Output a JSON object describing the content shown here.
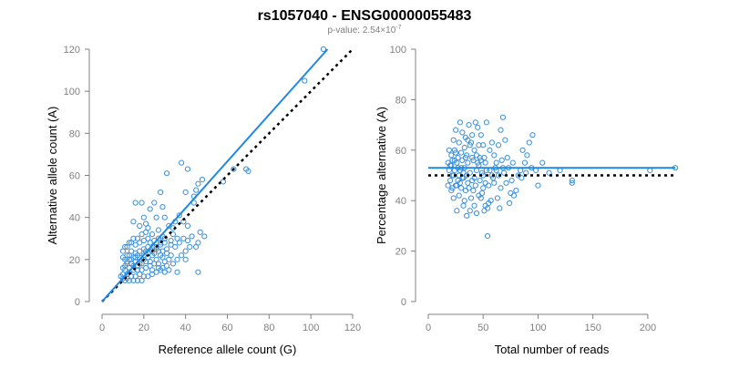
{
  "title": "rs1057040 - ENSG00000055483",
  "subtitle": {
    "prefix": "p-value: 2.54×10",
    "exponent": "-7"
  },
  "colors": {
    "points": "#3a8fd9",
    "fit_line": "#1f88e5",
    "reference_line": "#000000",
    "axis": "#808080"
  },
  "chart_data": [
    {
      "type": "scatter",
      "xlabel": "Reference allele count (G)",
      "ylabel": "Alternative allele count (A)",
      "xlim": [
        0,
        120
      ],
      "ylim": [
        0,
        120
      ],
      "xticks": [
        0,
        20,
        40,
        60,
        80,
        100,
        120
      ],
      "yticks": [
        0,
        20,
        40,
        60,
        80,
        100,
        120
      ],
      "fit_line": {
        "x": [
          0,
          108
        ],
        "y": [
          0,
          120
        ]
      },
      "reference_line": {
        "x": [
          0,
          120
        ],
        "y": [
          0,
          120
        ]
      },
      "points": [
        [
          106,
          120
        ],
        [
          97,
          105
        ],
        [
          69,
          63
        ],
        [
          70,
          62
        ],
        [
          63,
          63
        ],
        [
          58,
          57
        ],
        [
          46,
          56
        ],
        [
          48,
          58
        ],
        [
          38,
          66
        ],
        [
          41,
          63
        ],
        [
          40,
          52
        ],
        [
          44,
          50
        ],
        [
          45,
          53
        ],
        [
          44,
          47
        ],
        [
          31,
          61
        ],
        [
          28,
          52
        ],
        [
          29,
          45
        ],
        [
          25,
          47
        ],
        [
          23,
          44
        ],
        [
          19,
          47
        ],
        [
          16,
          47
        ],
        [
          30,
          40
        ],
        [
          26,
          40
        ],
        [
          20,
          40
        ],
        [
          21,
          37
        ],
        [
          15,
          38
        ],
        [
          18,
          36
        ],
        [
          22,
          35
        ],
        [
          24,
          32
        ],
        [
          27,
          34
        ],
        [
          32,
          36
        ],
        [
          35,
          38
        ],
        [
          34,
          35
        ],
        [
          37,
          41
        ],
        [
          39,
          38
        ],
        [
          41,
          36
        ],
        [
          36,
          30
        ],
        [
          33,
          29
        ],
        [
          30,
          28
        ],
        [
          28,
          27
        ],
        [
          26,
          25
        ],
        [
          25,
          26
        ],
        [
          22,
          26
        ],
        [
          21,
          24
        ],
        [
          20,
          25
        ],
        [
          18,
          24
        ],
        [
          17,
          22
        ],
        [
          16,
          23
        ],
        [
          15,
          21
        ],
        [
          14,
          24
        ],
        [
          13,
          22
        ],
        [
          12,
          22
        ],
        [
          11,
          20
        ],
        [
          10,
          21
        ],
        [
          12,
          18
        ],
        [
          14,
          18
        ],
        [
          16,
          19
        ],
        [
          18,
          18
        ],
        [
          20,
          20
        ],
        [
          22,
          21
        ],
        [
          24,
          22
        ],
        [
          26,
          20
        ],
        [
          28,
          22
        ],
        [
          30,
          19
        ],
        [
          32,
          20
        ],
        [
          33,
          22
        ],
        [
          29,
          24
        ],
        [
          31,
          25
        ],
        [
          27,
          18
        ],
        [
          23,
          17
        ],
        [
          21,
          16
        ],
        [
          19,
          15
        ],
        [
          17,
          15
        ],
        [
          15,
          15
        ],
        [
          13,
          14
        ],
        [
          11,
          15
        ],
        [
          10,
          13
        ],
        [
          12,
          13
        ],
        [
          14,
          12
        ],
        [
          16,
          12
        ],
        [
          18,
          13
        ],
        [
          20,
          12
        ],
        [
          22,
          12
        ],
        [
          24,
          13
        ],
        [
          12,
          11
        ],
        [
          13,
          10
        ],
        [
          15,
          10
        ],
        [
          17,
          10
        ],
        [
          19,
          10
        ],
        [
          11,
          10
        ],
        [
          10,
          11
        ],
        [
          9,
          12
        ],
        [
          10,
          16
        ],
        [
          11,
          17
        ],
        [
          13,
          16
        ],
        [
          15,
          17
        ],
        [
          17,
          17
        ],
        [
          19,
          18
        ],
        [
          21,
          19
        ],
        [
          23,
          19
        ],
        [
          25,
          18
        ],
        [
          27,
          16
        ],
        [
          29,
          16
        ],
        [
          31,
          17
        ],
        [
          34,
          18
        ],
        [
          36,
          20
        ],
        [
          38,
          22
        ],
        [
          40,
          24
        ],
        [
          42,
          26
        ],
        [
          35,
          26
        ],
        [
          33,
          27
        ],
        [
          37,
          28
        ],
        [
          43,
          31
        ],
        [
          47,
          33
        ],
        [
          49,
          31
        ],
        [
          46,
          28
        ],
        [
          39,
          30
        ],
        [
          41,
          29
        ],
        [
          45,
          26
        ],
        [
          40,
          20
        ],
        [
          36,
          14
        ],
        [
          46,
          14
        ],
        [
          25,
          29
        ],
        [
          27,
          30
        ],
        [
          29,
          31
        ],
        [
          22,
          30
        ],
        [
          20,
          29
        ],
        [
          18,
          28
        ],
        [
          16,
          27
        ],
        [
          14,
          28
        ],
        [
          12,
          26
        ],
        [
          10,
          24
        ],
        [
          11,
          26
        ],
        [
          13,
          28
        ],
        [
          15,
          30
        ],
        [
          17,
          30
        ],
        [
          19,
          32
        ],
        [
          21,
          33
        ],
        [
          23,
          28
        ],
        [
          25,
          23
        ],
        [
          27,
          24
        ],
        [
          29,
          21
        ],
        [
          31,
          23
        ],
        [
          24,
          15
        ],
        [
          26,
          14
        ],
        [
          28,
          15
        ],
        [
          30,
          14
        ],
        [
          32,
          15
        ],
        [
          13,
          20
        ],
        [
          12,
          19
        ],
        [
          14,
          20
        ],
        [
          16,
          21
        ],
        [
          18,
          21
        ],
        [
          20,
          22
        ],
        [
          22,
          23
        ],
        [
          24,
          24
        ],
        [
          26,
          26
        ],
        [
          28,
          28
        ],
        [
          30,
          30
        ],
        [
          34,
          32
        ]
      ]
    },
    {
      "type": "scatter",
      "xlabel": "Total number of reads",
      "ylabel": "Percentage alternative (A)",
      "xlim": [
        0,
        225
      ],
      "ylim": [
        0,
        100
      ],
      "xticks": [
        0,
        50,
        100,
        150,
        200
      ],
      "yticks": [
        0,
        20,
        40,
        60,
        80,
        100
      ],
      "fit_line": {
        "x": [
          0,
          225
        ],
        "y": [
          53,
          53
        ]
      },
      "reference_line": {
        "x": [
          0,
          225
        ],
        "y": [
          50,
          50
        ]
      },
      "points": [
        [
          225,
          53
        ],
        [
          202,
          52
        ],
        [
          131,
          48
        ],
        [
          131,
          47
        ],
        [
          120,
          52
        ],
        [
          110,
          51
        ],
        [
          104,
          55
        ],
        [
          100,
          46
        ],
        [
          98,
          52
        ],
        [
          95,
          66
        ],
        [
          92,
          63
        ],
        [
          90,
          58
        ],
        [
          88,
          55
        ],
        [
          86,
          60
        ],
        [
          84,
          52
        ],
        [
          80,
          44
        ],
        [
          78,
          42
        ],
        [
          76,
          48
        ],
        [
          74,
          39
        ],
        [
          72,
          57
        ],
        [
          70,
          64
        ],
        [
          68,
          73
        ],
        [
          66,
          68
        ],
        [
          64,
          62
        ],
        [
          62,
          55
        ],
        [
          60,
          58
        ],
        [
          58,
          50
        ],
        [
          56,
          60
        ],
        [
          55,
          39
        ],
        [
          54,
          26
        ],
        [
          54,
          37
        ],
        [
          53,
          71
        ],
        [
          52,
          38
        ],
        [
          52,
          47
        ],
        [
          51,
          57
        ],
        [
          50,
          62
        ],
        [
          50,
          45
        ],
        [
          49,
          51
        ],
        [
          48,
          66
        ],
        [
          47,
          57
        ],
        [
          46,
          54
        ],
        [
          46,
          42
        ],
        [
          45,
          69
        ],
        [
          44,
          35
        ],
        [
          44,
          52
        ],
        [
          43,
          71
        ],
        [
          42,
          60
        ],
        [
          42,
          49
        ],
        [
          41,
          44
        ],
        [
          40,
          66
        ],
        [
          40,
          57
        ],
        [
          39,
          41
        ],
        [
          38,
          62
        ],
        [
          38,
          51
        ],
        [
          37,
          70
        ],
        [
          36,
          47
        ],
        [
          36,
          55
        ],
        [
          35,
          34
        ],
        [
          35,
          58
        ],
        [
          34,
          65
        ],
        [
          34,
          44
        ],
        [
          33,
          53
        ],
        [
          33,
          61
        ],
        [
          32,
          49
        ],
        [
          32,
          38
        ],
        [
          31,
          67
        ],
        [
          31,
          56
        ],
        [
          30,
          45
        ],
        [
          30,
          59
        ],
        [
          29,
          71
        ],
        [
          29,
          52
        ],
        [
          28,
          42
        ],
        [
          28,
          63
        ],
        [
          27,
          48
        ],
        [
          27,
          57
        ],
        [
          26,
          36
        ],
        [
          26,
          55
        ],
        [
          25,
          68
        ],
        [
          25,
          46
        ],
        [
          24,
          60
        ],
        [
          24,
          52
        ],
        [
          23,
          41
        ],
        [
          23,
          64
        ],
        [
          22,
          50
        ],
        [
          22,
          56
        ],
        [
          21,
          44
        ],
        [
          21,
          58
        ],
        [
          20,
          48
        ],
        [
          20,
          54
        ],
        [
          19,
          52
        ],
        [
          19,
          60
        ],
        [
          18,
          46
        ],
        [
          18,
          55
        ],
        [
          45,
          55
        ],
        [
          47,
          48
        ],
        [
          49,
          43
        ],
        [
          51,
          36
        ],
        [
          53,
          52
        ],
        [
          55,
          46
        ],
        [
          57,
          40
        ],
        [
          59,
          49
        ],
        [
          61,
          53
        ],
        [
          63,
          41
        ],
        [
          65,
          37
        ],
        [
          67,
          56
        ],
        [
          69,
          51
        ],
        [
          71,
          47
        ],
        [
          73,
          53
        ],
        [
          75,
          43
        ],
        [
          77,
          55
        ],
        [
          82,
          50
        ],
        [
          85,
          49
        ],
        [
          89,
          51
        ],
        [
          94,
          53
        ],
        [
          42,
          38
        ],
        [
          41,
          56
        ],
        [
          39,
          63
        ],
        [
          37,
          45
        ],
        [
          35,
          50
        ],
        [
          33,
          40
        ],
        [
          31,
          49
        ],
        [
          29,
          47
        ],
        [
          27,
          53
        ],
        [
          25,
          59
        ],
        [
          23,
          50
        ],
        [
          21,
          54
        ],
        [
          48,
          56
        ],
        [
          46,
          62
        ],
        [
          44,
          58
        ],
        [
          43,
          46
        ],
        [
          52,
          55
        ],
        [
          56,
          52
        ],
        [
          58,
          63
        ],
        [
          60,
          47
        ],
        [
          62,
          52
        ],
        [
          64,
          50
        ],
        [
          66,
          45
        ],
        [
          68,
          53
        ],
        [
          36,
          64
        ],
        [
          38,
          36
        ],
        [
          40,
          48
        ],
        [
          30,
          53
        ],
        [
          28,
          50
        ],
        [
          26,
          46
        ],
        [
          24,
          56
        ],
        [
          22,
          45
        ],
        [
          34,
          57
        ],
        [
          32,
          51
        ],
        [
          50,
          50
        ],
        [
          48,
          41
        ]
      ]
    }
  ]
}
